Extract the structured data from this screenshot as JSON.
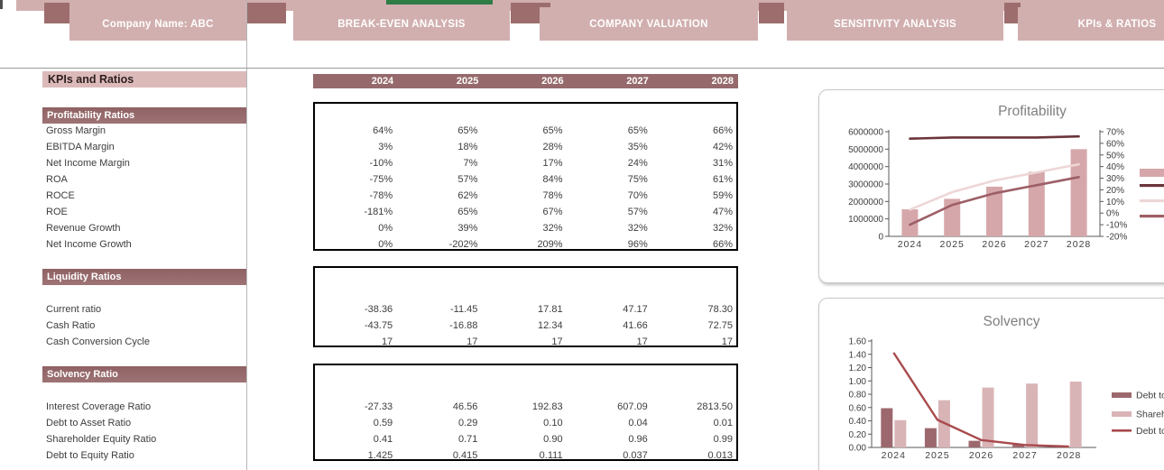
{
  "nav": {
    "tabs": [
      {
        "label": "Company Name: ABC"
      },
      {
        "label": "BREAK-EVEN ANALYSIS"
      },
      {
        "label": "COMPANY VALUATION"
      },
      {
        "label": "SENSITIVITY ANALYSIS"
      },
      {
        "label": "KPIs & RATIOS"
      }
    ]
  },
  "sheet": {
    "title": "KPIs and Ratios",
    "years": [
      "2024",
      "2025",
      "2026",
      "2027",
      "2028"
    ],
    "sections": [
      {
        "header": "Profitability Ratios",
        "rows": [
          {
            "label": "Gross Margin",
            "values": [
              "64%",
              "65%",
              "65%",
              "65%",
              "66%"
            ]
          },
          {
            "label": "EBITDA Margin",
            "values": [
              "3%",
              "18%",
              "28%",
              "35%",
              "42%"
            ]
          },
          {
            "label": "Net Income Margin",
            "values": [
              "-10%",
              "7%",
              "17%",
              "24%",
              "31%"
            ]
          },
          {
            "label": "ROA",
            "values": [
              "-75%",
              "57%",
              "84%",
              "75%",
              "61%"
            ]
          },
          {
            "label": "ROCE",
            "values": [
              "-78%",
              "62%",
              "78%",
              "70%",
              "59%"
            ]
          },
          {
            "label": "ROE",
            "values": [
              "-181%",
              "65%",
              "67%",
              "57%",
              "47%"
            ]
          },
          {
            "label": "Revenue Growth",
            "values": [
              "0%",
              "39%",
              "32%",
              "32%",
              "32%"
            ]
          },
          {
            "label": "Net Income Growth",
            "values": [
              "0%",
              "-202%",
              "209%",
              "96%",
              "66%"
            ]
          }
        ]
      },
      {
        "header": "Liquidity Ratios",
        "rows": [
          {
            "label": "Current ratio",
            "values": [
              "-38.36",
              "-11.45",
              "17.81",
              "47.17",
              "78.30"
            ]
          },
          {
            "label": "Cash Ratio",
            "values": [
              "-43.75",
              "-16.88",
              "12.34",
              "41.66",
              "72.75"
            ]
          },
          {
            "label": "Cash Conversion Cycle",
            "values": [
              "17",
              "17",
              "17",
              "17",
              "17"
            ]
          }
        ]
      },
      {
        "header": "Solvency Ratio",
        "rows": [
          {
            "label": "Interest Coverage Ratio",
            "values": [
              "-27.33",
              "46.56",
              "192.83",
              "607.09",
              "2813.50"
            ]
          },
          {
            "label": "Debt to Asset Ratio",
            "values": [
              "0.59",
              "0.29",
              "0.10",
              "0.04",
              "0.01"
            ]
          },
          {
            "label": "Shareholder Equity Ratio",
            "values": [
              "0.41",
              "0.71",
              "0.90",
              "0.96",
              "0.99"
            ]
          },
          {
            "label": "Debt to Equity Ratio",
            "values": [
              "1.425",
              "0.415",
              "0.111",
              "0.037",
              "0.013"
            ]
          }
        ]
      }
    ]
  },
  "chart_data": [
    {
      "type": "bar",
      "combo": "bar+line",
      "title": "Profitability",
      "categories": [
        "2024",
        "2025",
        "2026",
        "2027",
        "2028"
      ],
      "bar_series": {
        "name": "",
        "values": [
          1550000,
          2150000,
          2850000,
          3700000,
          5000000
        ]
      },
      "line_series": [
        {
          "name": "",
          "values": [
            64,
            65,
            65,
            65,
            66
          ]
        },
        {
          "name": "",
          "values": [
            3,
            18,
            28,
            35,
            42
          ]
        },
        {
          "name": "",
          "values": [
            -10,
            7,
            17,
            24,
            31
          ]
        }
      ],
      "left_axis": {
        "min": 0,
        "max": 6000000,
        "ticks": [
          "6000000",
          "5000000",
          "4000000",
          "3000000",
          "2000000",
          "1000000",
          "0"
        ]
      },
      "right_axis": {
        "min": -20,
        "max": 70,
        "ticks": [
          "70%",
          "60%",
          "50%",
          "40%",
          "30%",
          "20%",
          "10%",
          "0%",
          "-10%",
          "-20%"
        ]
      },
      "legend_position": "right (labels cut off at screen edge)"
    },
    {
      "type": "bar",
      "combo": "bar+line",
      "title": "Solvency",
      "categories": [
        "2024",
        "2025",
        "2026",
        "2027",
        "2028"
      ],
      "bar_series": [
        {
          "name": "Debt to",
          "values": [
            0.59,
            0.29,
            0.1,
            0.04,
            0.01
          ]
        },
        {
          "name": "Shareh",
          "values": [
            0.41,
            0.71,
            0.9,
            0.96,
            0.99
          ]
        }
      ],
      "line_series": [
        {
          "name": "Debt to",
          "values": [
            1.425,
            0.415,
            0.111,
            0.037,
            0.013
          ]
        }
      ],
      "left_axis": {
        "min": 0,
        "max": 1.6,
        "ticks": [
          "1.60",
          "1.40",
          "1.20",
          "1.00",
          "0.80",
          "0.60",
          "0.40",
          "0.20",
          "0.00"
        ]
      },
      "legend_position": "right (labels truncated at screen edge)"
    }
  ],
  "colors": {
    "tab_pink": "#d2afaf",
    "nav_square": "#9d6d6d",
    "green_accent": "#2e7d46",
    "header_maroon": "#966a6c",
    "kpi_bar_pink": "#dcbaba",
    "chart_bar_pink": "#d6a7aa",
    "line_dark_maroon": "#6b343b",
    "line_light_pink": "#eed6d6",
    "line_medium_rose": "#9d5f66",
    "solvency_dark_bar": "#9c686e",
    "solvency_pink_bar": "#d9b4b7",
    "solvency_line_red": "#a84a4c",
    "chart_title_gray": "#7f7f7f"
  }
}
